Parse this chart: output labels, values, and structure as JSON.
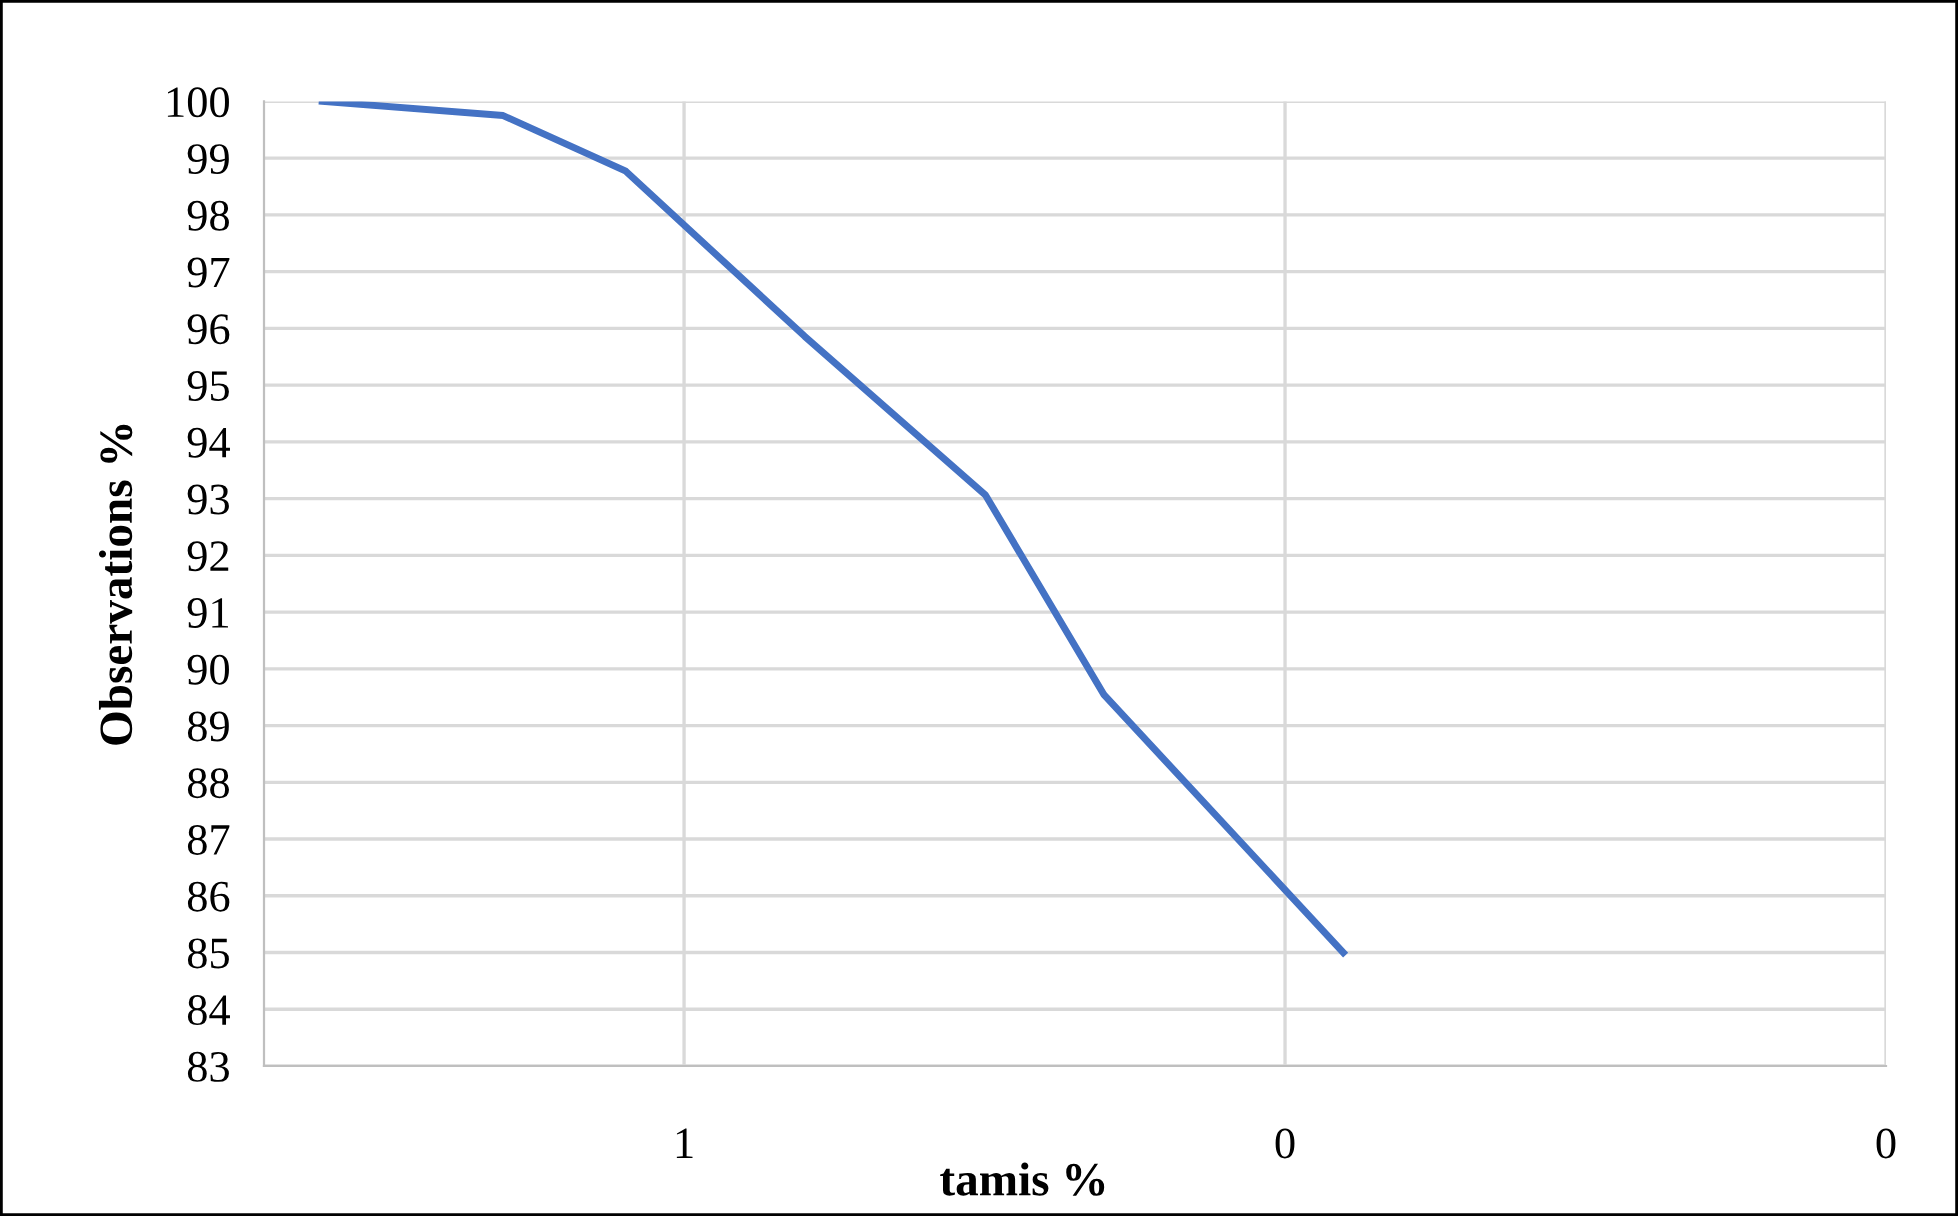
{
  "chart_data": {
    "type": "line",
    "xlabel": "tamis %",
    "ylabel": "Observations %",
    "x": [
      4,
      2,
      1.25,
      0.63,
      0.315,
      0.2,
      0.08
    ],
    "series": [
      {
        "color": "#4472c4",
        "values": [
          100,
          99.75,
          98.77,
          95.86,
          93.06,
          89.54,
          85
        ]
      }
    ],
    "log": "x",
    "xlim": [
      5,
      0.01
    ],
    "xticks": [
      {
        "value": 1,
        "label": "1"
      },
      {
        "value": 0.1,
        "label": "0"
      },
      {
        "value": 0.01,
        "label": "0"
      }
    ],
    "ylim": [
      83,
      100
    ],
    "yticks": [
      83,
      84,
      85,
      86,
      87,
      88,
      89,
      90,
      91,
      92,
      93,
      94,
      95,
      96,
      97,
      98,
      99,
      100
    ],
    "grid": true,
    "marker": "none",
    "line_style": "solid"
  }
}
